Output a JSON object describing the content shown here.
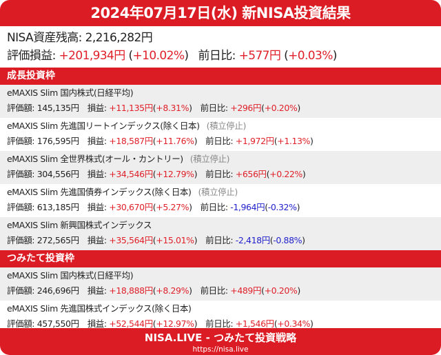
{
  "title": "2024年07月17日(水) 新NISA投資結果",
  "summary": {
    "balance_label": "NISA資産残高: ",
    "balance": "2,216,282円",
    "pl_label": "評価損益: ",
    "pl": "+201,934円",
    "pl_pct": "+10.02%",
    "day_label": "前日比: ",
    "day": "+577円",
    "day_pct": "+0.03%"
  },
  "labels": {
    "value": "評価額: ",
    "pl": "損益: ",
    "day": "前日比: "
  },
  "colors": {
    "accent": "#dc1c24",
    "positive": "#e0202a",
    "negative": "#2222cc"
  },
  "sections": [
    {
      "title": "成長投資枠",
      "funds": [
        {
          "name": "eMAXIS Slim 国内株式(日経平均)",
          "note": "",
          "value": "145,135円",
          "pl": "+11,135円",
          "pl_pct": "+8.31%",
          "day": "+296円",
          "day_pct": "+0.20%",
          "day_sign": "positive"
        },
        {
          "name": "eMAXIS Slim 先進国リートインデックス(除く日本)",
          "note": "(積立停止)",
          "value": "176,595円",
          "pl": "+18,587円",
          "pl_pct": "+11.76%",
          "day": "+1,972円",
          "day_pct": "+1.13%",
          "day_sign": "positive"
        },
        {
          "name": "eMAXIS Slim 全世界株式(オール・カントリー)",
          "note": "(積立停止)",
          "value": "304,556円",
          "pl": "+34,546円",
          "pl_pct": "+12.79%",
          "day": "+656円",
          "day_pct": "+0.22%",
          "day_sign": "positive"
        },
        {
          "name": "eMAXIS Slim 先進国債券インデックス(除く日本)",
          "note": "(積立停止)",
          "value": "613,185円",
          "pl": "+30,670円",
          "pl_pct": "+5.27%",
          "day": "-1,964円",
          "day_pct": "-0.32%",
          "day_sign": "negative"
        },
        {
          "name": "eMAXIS Slim 新興国株式インデックス",
          "note": "",
          "value": "272,565円",
          "pl": "+35,564円",
          "pl_pct": "+15.01%",
          "day": "-2,418円",
          "day_pct": "-0.88%",
          "day_sign": "negative"
        }
      ]
    },
    {
      "title": "つみたて投資枠",
      "funds": [
        {
          "name": "eMAXIS Slim 国内株式(日経平均)",
          "note": "",
          "value": "246,696円",
          "pl": "+18,888円",
          "pl_pct": "+8.29%",
          "day": "+489円",
          "day_pct": "+0.20%",
          "day_sign": "positive"
        },
        {
          "name": "eMAXIS Slim 先進国株式インデックス(除く日本)",
          "note": "",
          "value": "457,550円",
          "pl": "+52,544円",
          "pl_pct": "+12.97%",
          "day": "+1,546円",
          "day_pct": "+0.34%",
          "day_sign": "positive"
        }
      ]
    }
  ],
  "footer": {
    "title": "NISA.LIVE - つみたて投資戦略",
    "url": "https://nisa.live"
  }
}
